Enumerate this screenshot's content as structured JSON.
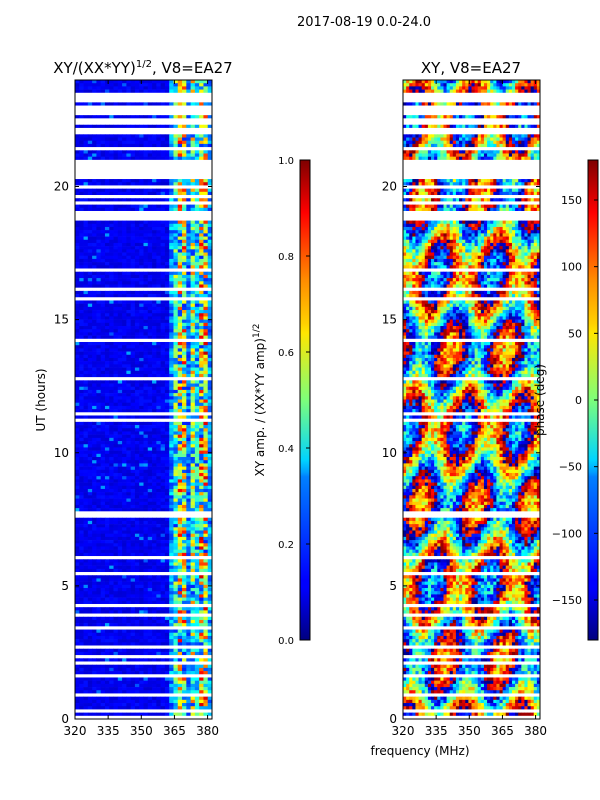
{
  "suptitle": "2017-08-19 0.0-24.0",
  "chart_data": [
    {
      "type": "heatmap",
      "title_prefix": "XY/(XX*YY)",
      "title_exponent": "1/2",
      "title_suffix": ", V8=EA27",
      "xlabel": "",
      "ylabel": "UT (hours)",
      "xlim": [
        320,
        382
      ],
      "ylim": [
        0,
        24
      ],
      "xticks": [
        320,
        335,
        350,
        365,
        380
      ],
      "yticks": [
        0,
        5,
        10,
        15,
        20
      ],
      "colorbar": {
        "label_prefix": "XY amp. / (XX*YY amp)",
        "label_exponent": "1/2",
        "range": [
          0.0,
          1.0
        ],
        "ticks": [
          "0.0",
          "0.2",
          "0.4",
          "0.6",
          "0.8",
          "1.0"
        ],
        "colormap": "jet"
      },
      "description_values": {
        "background_level": 0.08,
        "active_band_mhz": [
          362,
          382
        ],
        "active_level_range": [
          0.3,
          0.9
        ]
      }
    },
    {
      "type": "heatmap",
      "title": "XY, V8=EA27",
      "xlabel": "frequency (MHz)",
      "ylabel": "",
      "xlim": [
        320,
        382
      ],
      "ylim": [
        0,
        24
      ],
      "xticks": [
        320,
        335,
        350,
        365,
        380
      ],
      "yticks": [
        0,
        5,
        10,
        15,
        20
      ],
      "colorbar": {
        "label": "phase (deg)",
        "range": [
          -180,
          180
        ],
        "ticks": [
          "150",
          "100",
          "50",
          "0",
          "−50",
          "−100",
          "−150"
        ],
        "tick_values": [
          150,
          100,
          50,
          0,
          -50,
          -100,
          -150
        ],
        "colormap": "jet"
      },
      "description_values": {
        "phase_range_deg": [
          -180,
          180
        ]
      }
    }
  ]
}
